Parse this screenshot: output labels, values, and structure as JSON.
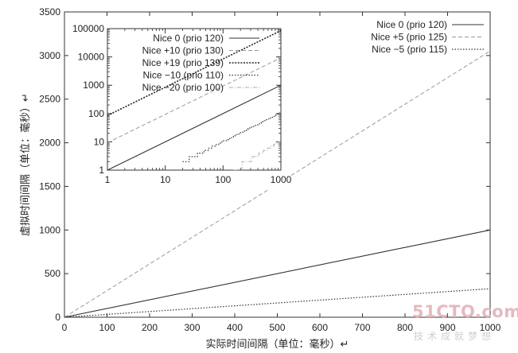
{
  "chart_data": [
    {
      "type": "line",
      "xlabel": "实际时间间隔（单位：毫秒）↵",
      "ylabel": "虚拟时间间隔（单位：毫秒）↵",
      "xlim": [
        0,
        1000
      ],
      "ylim": [
        0,
        3500
      ],
      "xticks": [
        "0",
        "100",
        "200",
        "300",
        "400",
        "500",
        "600",
        "700",
        "800",
        "900",
        "1000"
      ],
      "yticks": [
        "0",
        "500",
        "1000",
        "1500",
        "2000",
        "2500",
        "3000",
        "3500"
      ],
      "legend_position": "top-right",
      "grid": false,
      "series": [
        {
          "name": "Nice 0 (prio 120)",
          "style": "solid",
          "x": [
            0,
            1000
          ],
          "y": [
            0,
            1000
          ]
        },
        {
          "name": "Nice +5 (prio 125)",
          "style": "dashed",
          "x": [
            0,
            1000
          ],
          "y": [
            0,
            3052
          ]
        },
        {
          "name": "Nice −5 (prio 115)",
          "style": "dotted",
          "x": [
            0,
            1000
          ],
          "y": [
            0,
            327
          ]
        }
      ]
    },
    {
      "type": "line",
      "scale": "log-log",
      "xlim": [
        1,
        1000
      ],
      "ylim": [
        1,
        100000
      ],
      "xticks": [
        "1",
        "10",
        "100",
        "1000"
      ],
      "yticks": [
        "1",
        "10",
        "100",
        "1000",
        "10000",
        "100000"
      ],
      "legend_position": "top-left",
      "series": [
        {
          "name": "Nice 0 (prio 120)",
          "style": "solid",
          "x": [
            1,
            1000
          ],
          "y": [
            1,
            1000
          ]
        },
        {
          "name": "Nice +10 (prio 130)",
          "style": "dashed",
          "x": [
            1,
            1000
          ],
          "y": [
            9.3,
            9300
          ]
        },
        {
          "name": "Nice +19 (prio 139)",
          "style": "dotted-bold",
          "x": [
            1,
            1000
          ],
          "y": [
            85,
            85000
          ]
        },
        {
          "name": "Nice −10 (prio 110)",
          "style": "dotted",
          "x": [
            20,
            1000
          ],
          "y": [
            2,
            110
          ]
        },
        {
          "name": "Nice −20 (prio 100)",
          "style": "dash-dot",
          "x": [
            150,
            1000
          ],
          "y": [
            1,
            11
          ]
        }
      ]
    }
  ],
  "watermark": {
    "brand": "51CTO.com",
    "subtitle": "技术成就梦想"
  }
}
